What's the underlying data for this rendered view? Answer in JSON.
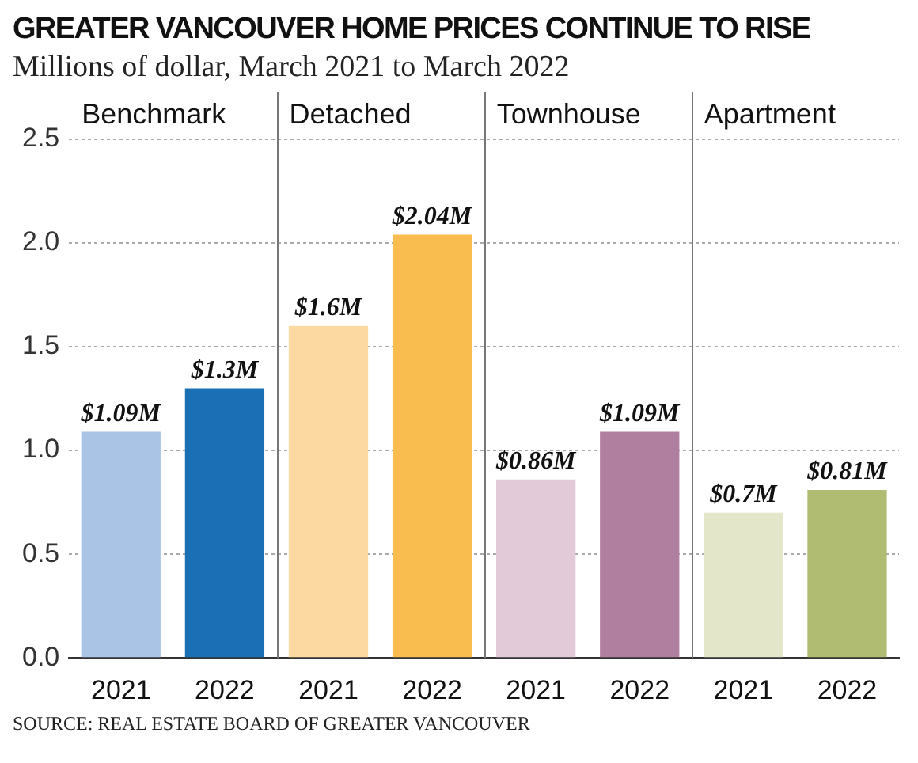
{
  "chart_data": {
    "type": "bar",
    "title": "GREATER VANCOUVER HOME PRICES CONTINUE TO RISE",
    "subtitle": "Millions of dollar, March 2021 to March 2022",
    "categories": [
      "2021",
      "2022",
      "2021",
      "2022",
      "2021",
      "2022",
      "2021",
      "2022"
    ],
    "values": [
      1.09,
      1.3,
      1.6,
      2.04,
      0.86,
      1.09,
      0.7,
      0.81
    ],
    "value_labels": [
      "$1.09M",
      "$1.3M",
      "$1.6M",
      "$2.04M",
      "$0.86M",
      "$1.09M",
      "$0.7M",
      "$0.81M"
    ],
    "colors": [
      "#a9c4e4",
      "#1a6fb5",
      "#fcd9a0",
      "#f9bc4e",
      "#e2cad9",
      "#b07fa0",
      "#e3e6c8",
      "#b0bc72"
    ],
    "ylim": [
      0,
      2.5
    ],
    "yticks": [
      {
        "value": 0,
        "label": "0.0"
      },
      0.5,
      {
        "value": 1,
        "label": "1.0"
      },
      1.5,
      {
        "value": 2,
        "label": "2.0"
      },
      2.5
    ],
    "grid": "y",
    "annotations": [
      "Benchmark",
      "Detached",
      "Townhouse",
      "Apartment",
      "SOURCE: REAL ESTATE BOARD OF GREATER VANCOUVER"
    ]
  }
}
